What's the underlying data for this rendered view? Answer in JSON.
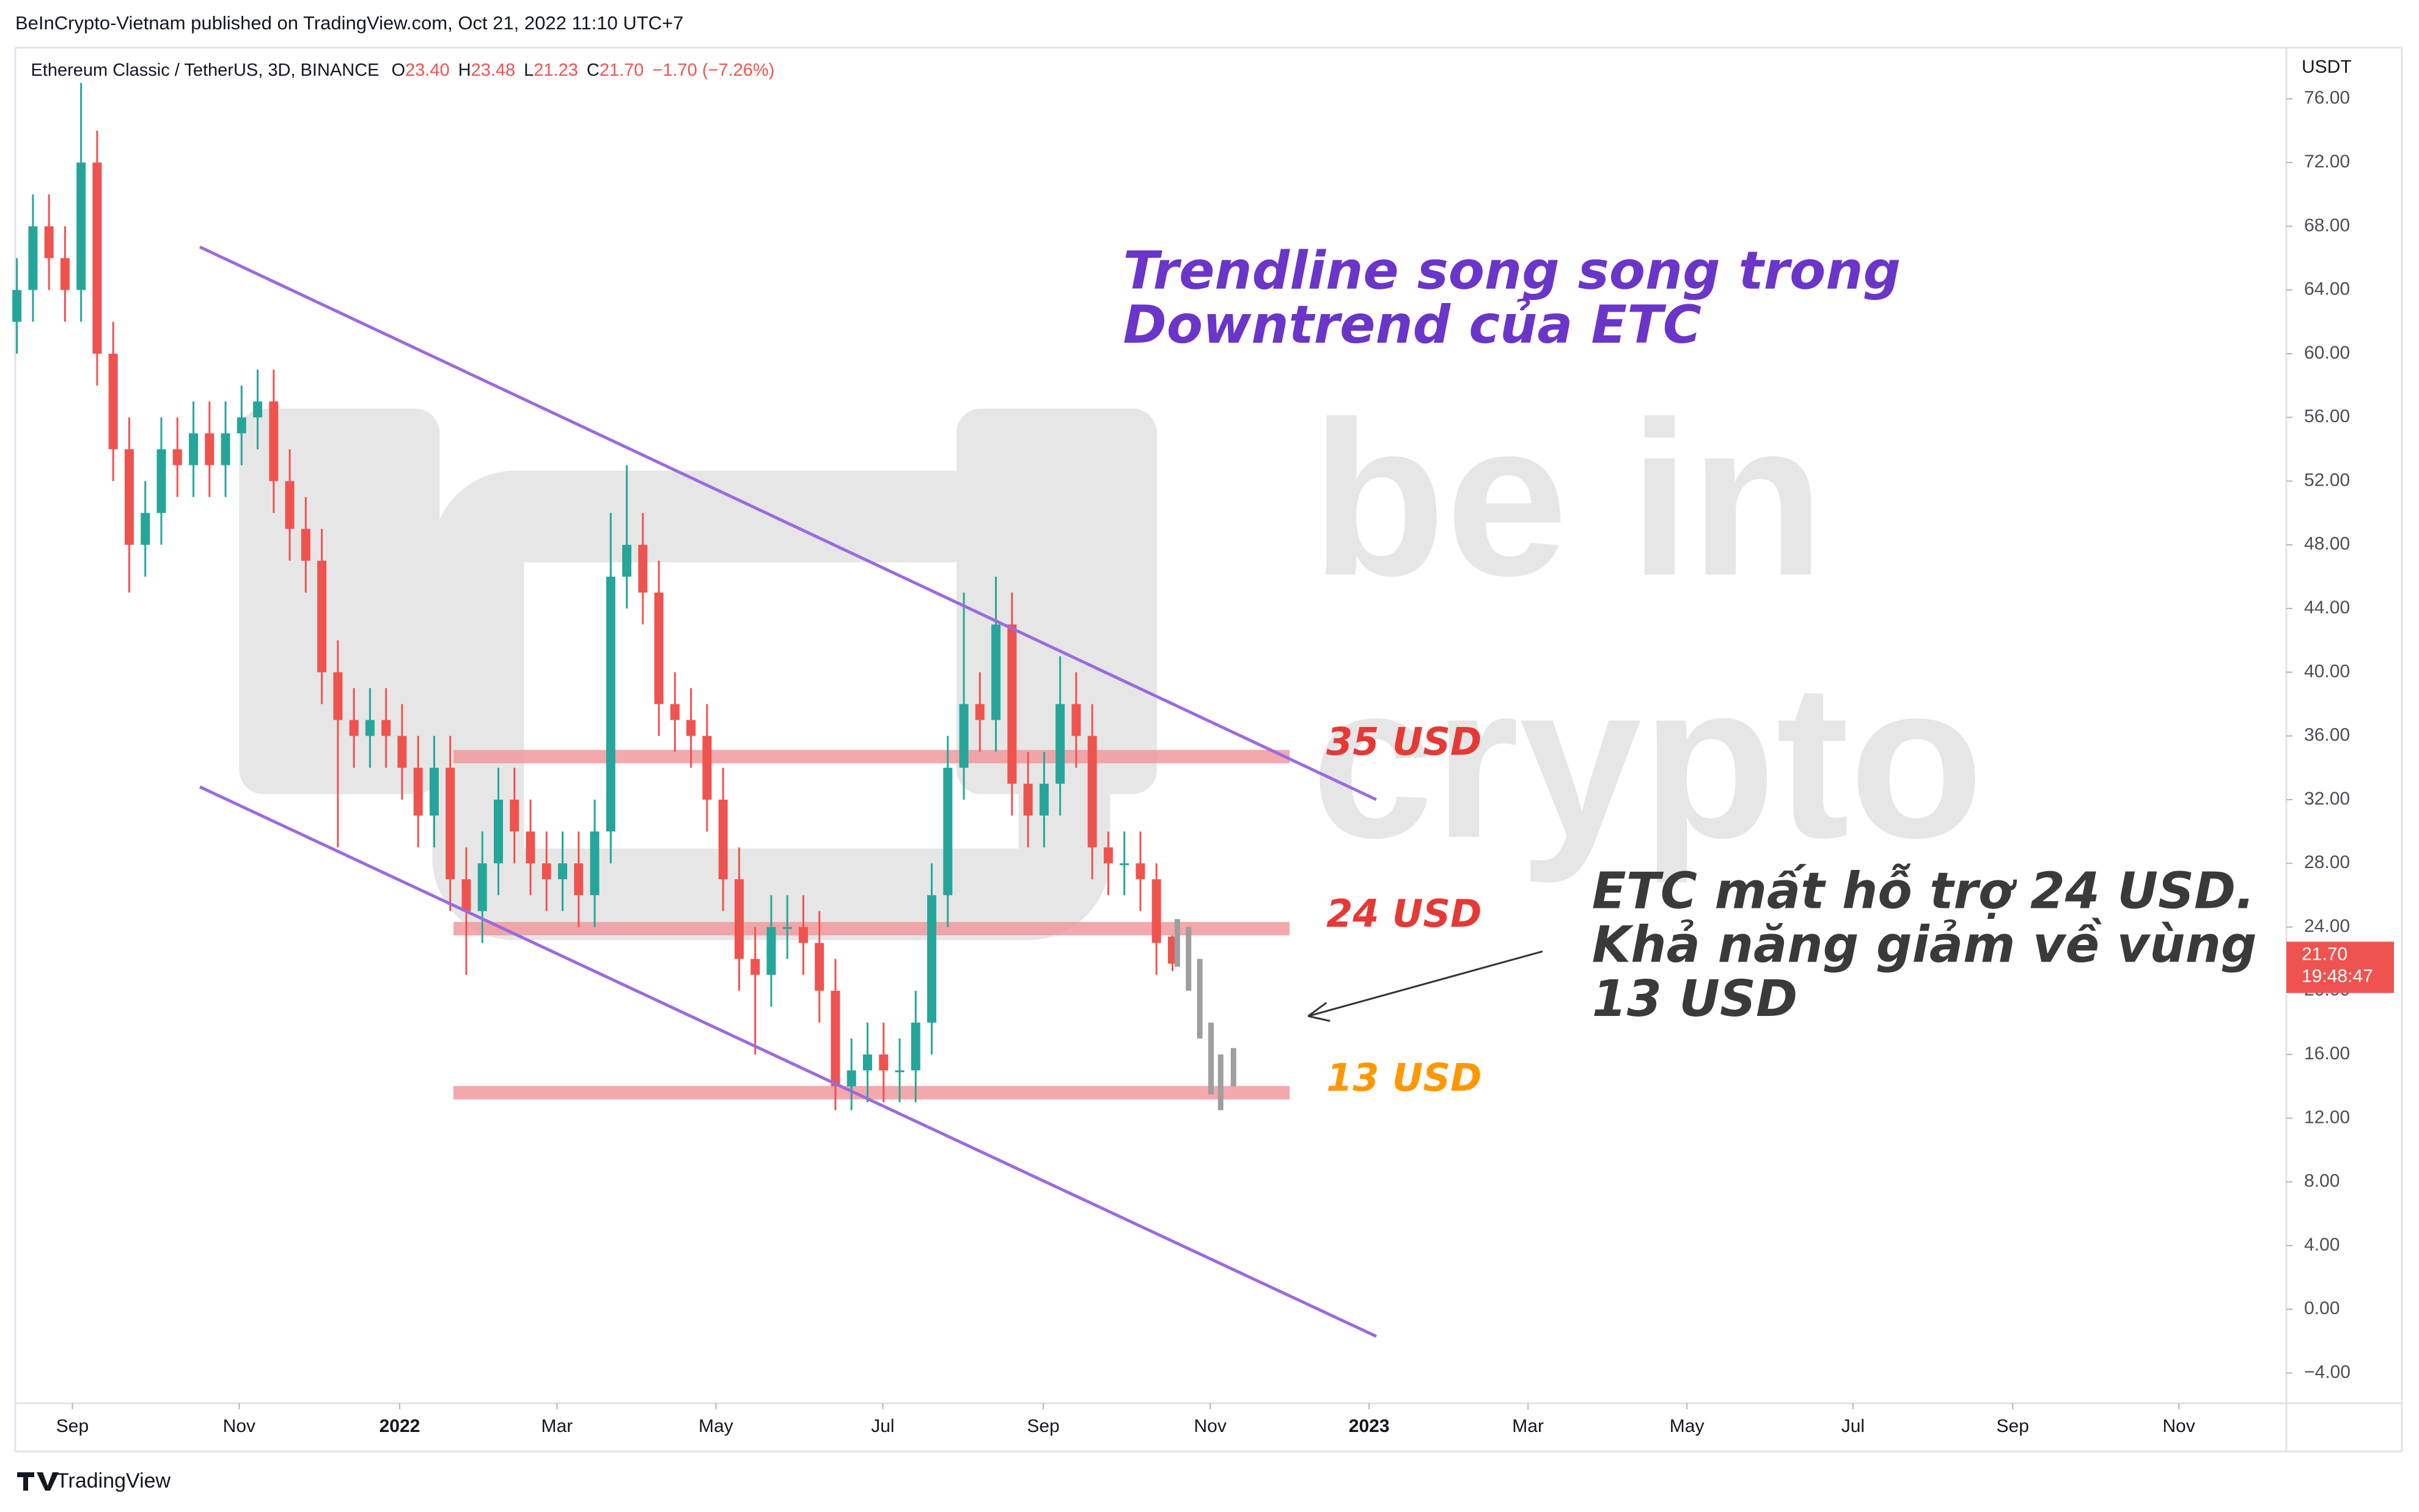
{
  "header": {
    "published": "BeInCrypto-Vietnam published on TradingView.com, Oct 21, 2022 11:10 UTC+7",
    "brand": "TradingView"
  },
  "chart_data": {
    "type": "candlestick",
    "symbol": "Ethereum Classic / TetherUS, 3D, BINANCE",
    "ohlc_legend": [
      {
        "key": "O",
        "value": "23.40"
      },
      {
        "key": "H",
        "value": "23.48"
      },
      {
        "key": "L",
        "value": "21.23"
      },
      {
        "key": "C",
        "value": "21.70"
      }
    ],
    "change": "−1.70 (−7.26%)",
    "currency": "USDT",
    "last_price": {
      "value": 21.7,
      "label": "21.70",
      "countdown": "19:48:47"
    },
    "up_color": "#26a69a",
    "down_color": "#ef5350",
    "open": [
      62,
      64,
      68,
      66,
      64,
      72,
      60,
      54,
      48,
      50,
      54,
      53,
      55,
      53,
      55,
      56,
      57,
      52,
      49,
      47,
      40,
      37,
      36,
      37,
      36,
      34,
      31,
      34,
      27,
      25,
      28,
      32,
      30,
      28,
      27,
      28,
      26,
      30,
      46,
      48,
      45,
      38,
      37,
      36,
      32,
      27,
      22,
      21,
      24,
      24,
      23,
      20,
      14,
      15,
      16,
      15,
      15,
      18,
      26,
      34,
      38,
      37,
      43,
      33,
      31,
      33,
      38,
      36,
      29,
      28,
      28,
      27,
      23.4
    ],
    "high": [
      66,
      70,
      70,
      68,
      77,
      74,
      62,
      56,
      52,
      56,
      56,
      57,
      57,
      57,
      58,
      59,
      59,
      54,
      51,
      49,
      42,
      39,
      39,
      39,
      38,
      36,
      36,
      36,
      29,
      30,
      34,
      34,
      32,
      30,
      30,
      30,
      32,
      50,
      53,
      50,
      47,
      40,
      39,
      38,
      34,
      29,
      24,
      26,
      26,
      26,
      25,
      22,
      17,
      18,
      18,
      17,
      20,
      28,
      36,
      45,
      40,
      46,
      45,
      35,
      35,
      41,
      40,
      38,
      30,
      30,
      30,
      28,
      23.48
    ],
    "low": [
      60,
      62,
      64,
      62,
      62,
      58,
      52,
      45,
      46,
      48,
      51,
      51,
      51,
      51,
      53,
      54,
      50,
      47,
      45,
      38,
      29,
      34,
      34,
      34,
      32,
      29,
      29,
      25,
      21,
      23,
      26,
      28,
      26,
      25,
      25,
      24,
      24,
      28,
      44,
      43,
      36,
      35,
      34,
      30,
      25,
      20,
      16,
      19,
      22,
      21,
      18,
      12.5,
      12.5,
      13,
      13,
      13,
      13,
      16,
      24,
      32,
      35,
      35,
      31,
      29,
      29,
      31,
      34,
      27,
      26,
      26,
      25,
      21,
      21.23
    ],
    "close": [
      64,
      68,
      66,
      64,
      72,
      60,
      54,
      48,
      50,
      54,
      53,
      55,
      53,
      55,
      56,
      57,
      52,
      49,
      47,
      40,
      37,
      36,
      37,
      36,
      34,
      31,
      34,
      27,
      25,
      28,
      32,
      30,
      28,
      27,
      28,
      26,
      30,
      46,
      48,
      45,
      38,
      37,
      36,
      32,
      27,
      22,
      21,
      24,
      24,
      23,
      20,
      14,
      15,
      16,
      15,
      15,
      18,
      26,
      34,
      38,
      37,
      43,
      33,
      31,
      33,
      38,
      36,
      29,
      28,
      28,
      27,
      23,
      21.7
    ],
    "projection": {
      "color": "#9e9e9e",
      "x": [
        72.3,
        73,
        73.7,
        74.4,
        75,
        75.8
      ],
      "high": [
        24.5,
        24,
        22,
        18,
        16,
        16.4
      ],
      "low": [
        21.5,
        20,
        17,
        13.5,
        12.5,
        14
      ]
    },
    "xlim": [
      -0.1,
      141.4
    ],
    "xticks": [
      {
        "value": 3.46,
        "label": "Sep"
      },
      {
        "value": 13.85,
        "label": "Nov"
      },
      {
        "value": 23.85,
        "label": "2022"
      },
      {
        "value": 33.65,
        "label": "Mar"
      },
      {
        "value": 43.55,
        "label": "May"
      },
      {
        "value": 53.95,
        "label": "Jul"
      },
      {
        "value": 63.95,
        "label": "Sep"
      },
      {
        "value": 74.35,
        "label": "Nov"
      },
      {
        "value": 84.25,
        "label": "2023"
      },
      {
        "value": 94.15,
        "label": "Mar"
      },
      {
        "value": 104.05,
        "label": "May"
      },
      {
        "value": 114.4,
        "label": "Jul"
      },
      {
        "value": 124.35,
        "label": "Sep"
      },
      {
        "value": 134.7,
        "label": "Nov"
      }
    ],
    "ylim": [
      -5.9,
      79.1
    ],
    "yticks": [
      {
        "value": 76,
        "label": "76.00"
      },
      {
        "value": 72,
        "label": "72.00"
      },
      {
        "value": 68,
        "label": "68.00"
      },
      {
        "value": 64,
        "label": "64.00"
      },
      {
        "value": 60,
        "label": "60.00"
      },
      {
        "value": 56,
        "label": "56.00"
      },
      {
        "value": 52,
        "label": "52.00"
      },
      {
        "value": 48,
        "label": "48.00"
      },
      {
        "value": 44,
        "label": "44.00"
      },
      {
        "value": 40,
        "label": "40.00"
      },
      {
        "value": 36,
        "label": "36.00"
      },
      {
        "value": 32,
        "label": "32.00"
      },
      {
        "value": 28,
        "label": "28.00"
      },
      {
        "value": 24,
        "label": "24.00"
      },
      {
        "value": 20,
        "label": "20.00"
      },
      {
        "value": 16,
        "label": "16.00"
      },
      {
        "value": 12,
        "label": "12.00"
      },
      {
        "value": 8,
        "label": "8.00"
      },
      {
        "value": 4,
        "label": "4.00"
      },
      {
        "value": 0,
        "label": "0.00"
      },
      {
        "value": -4,
        "label": "−4.00"
      }
    ],
    "trendlines": [
      {
        "color": "#9c6ade",
        "x": [
          11.4,
          84.7
        ],
        "y": [
          66.7,
          32.0
        ]
      },
      {
        "color": "#9c6ade",
        "x": [
          11.4,
          84.7
        ],
        "y": [
          32.8,
          -1.7
        ]
      }
    ],
    "levels": [
      {
        "label": "35 USD",
        "value": 34.7,
        "x": [
          27.2,
          79.3
        ],
        "label_color": "#e53935"
      },
      {
        "label": "24 USD",
        "value": 23.9,
        "x": [
          27.2,
          79.3
        ],
        "label_color": "#e53935"
      },
      {
        "label": "13 USD",
        "value": 13.6,
        "x": [
          27.2,
          79.3
        ],
        "label_color": "#ff9800"
      }
    ],
    "title": [
      "Trendline song song trong",
      "Downtrend của ETC"
    ],
    "note": [
      "ETC mất hỗ trợ 24 USD.",
      "Khả năng giảm về vùng",
      "13 USD"
    ],
    "watermark": [
      "be in",
      "crypto"
    ]
  }
}
